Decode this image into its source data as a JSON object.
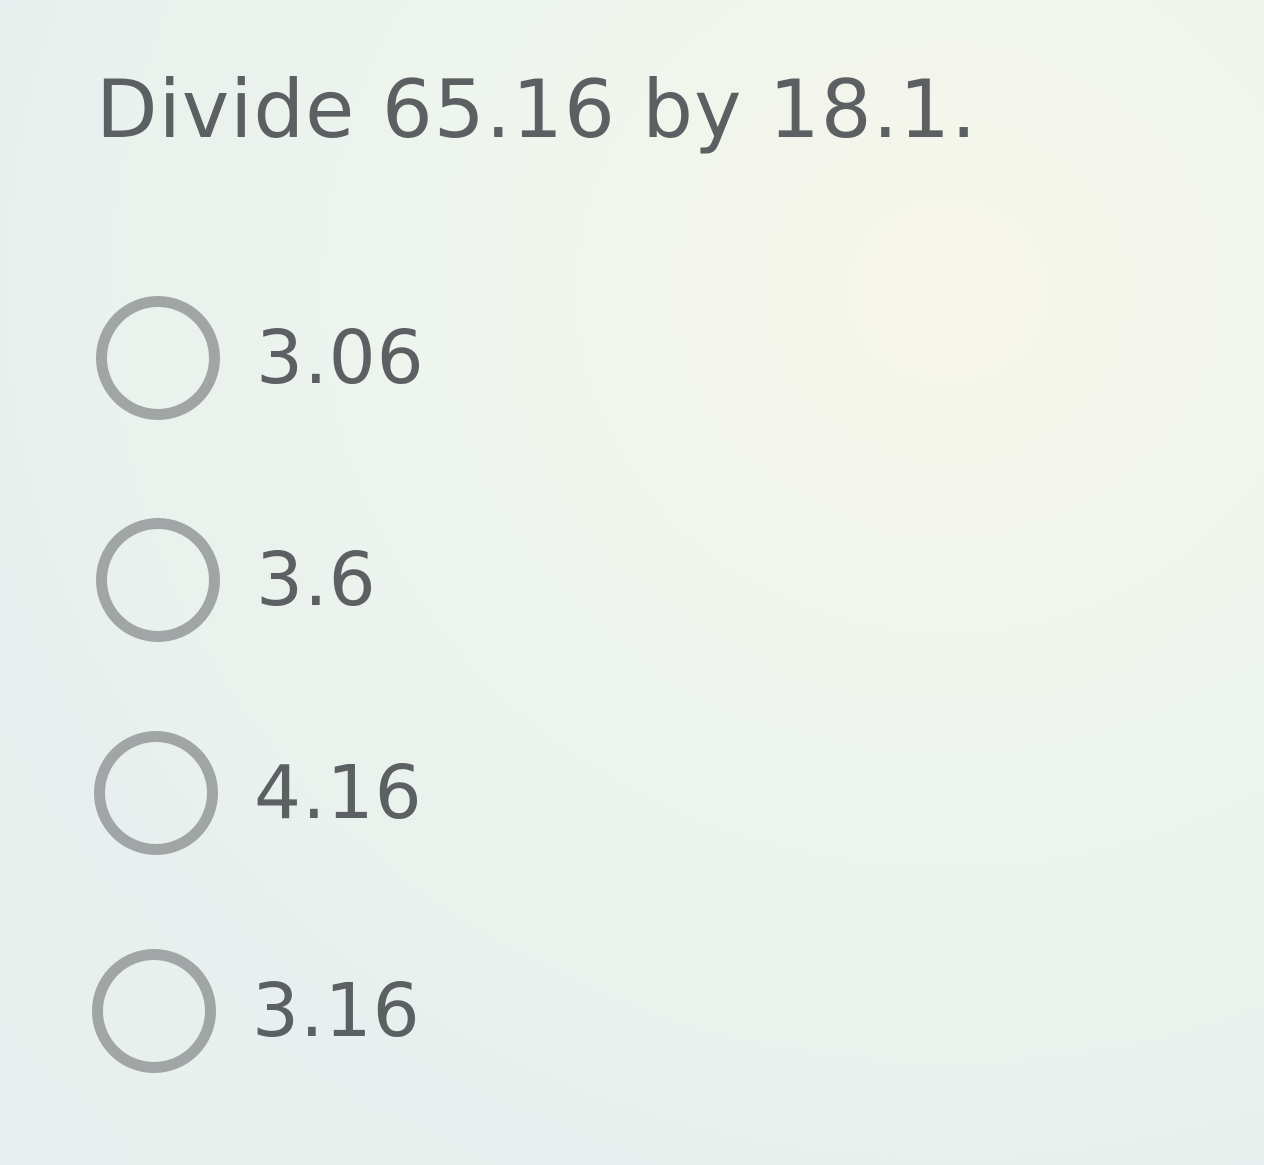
{
  "question": "Divide 65.16 by 18.1.",
  "options": [
    {
      "label": "3.06",
      "selected": false
    },
    {
      "label": "3.6",
      "selected": false
    },
    {
      "label": "4.16",
      "selected": false
    },
    {
      "label": "3.16",
      "selected": false
    }
  ],
  "colors": {
    "text": "#5c6062",
    "radio_border": "#a2a5a5",
    "background": "#eaf2ee"
  }
}
